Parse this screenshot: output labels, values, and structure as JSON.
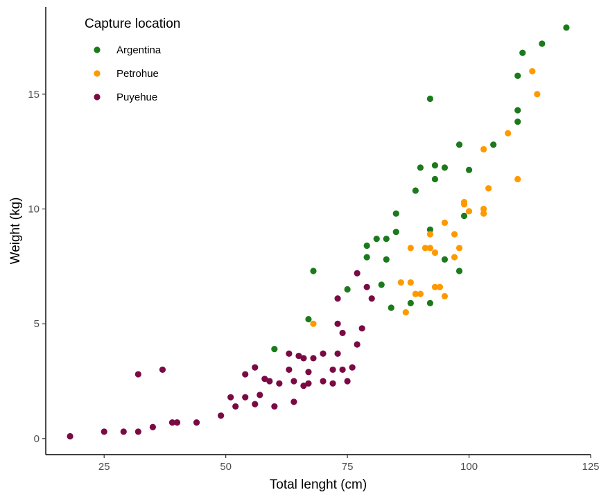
{
  "chart_data": {
    "type": "scatter",
    "title": "",
    "xlabel": "Total lenght (cm)",
    "ylabel": "Weight (kg)",
    "xlim": [
      13,
      125
    ],
    "ylim": [
      -0.7,
      18.8
    ],
    "x_ticks": [
      25,
      50,
      75,
      100,
      125
    ],
    "y_ticks": [
      0,
      5,
      10,
      15
    ],
    "grid": false,
    "legend": {
      "title": "Capture location",
      "placement": "top-left"
    },
    "series": [
      {
        "name": "Argentina",
        "color": "#1b7a1b",
        "points": [
          [
            60,
            3.9
          ],
          [
            67,
            5.2
          ],
          [
            68,
            7.3
          ],
          [
            75,
            6.5
          ],
          [
            79,
            7.9
          ],
          [
            79,
            8.4
          ],
          [
            81,
            8.7
          ],
          [
            82,
            6.7
          ],
          [
            83,
            7.8
          ],
          [
            83,
            8.7
          ],
          [
            84,
            5.7
          ],
          [
            85,
            9.0
          ],
          [
            85,
            9.8
          ],
          [
            88,
            5.9
          ],
          [
            89,
            10.8
          ],
          [
            90,
            11.8
          ],
          [
            92,
            5.9
          ],
          [
            92,
            9.1
          ],
          [
            92,
            14.8
          ],
          [
            93,
            11.3
          ],
          [
            93,
            11.9
          ],
          [
            95,
            7.8
          ],
          [
            95,
            11.8
          ],
          [
            98,
            7.3
          ],
          [
            98,
            12.8
          ],
          [
            99,
            9.7
          ],
          [
            100,
            11.7
          ],
          [
            105,
            12.8
          ],
          [
            110,
            13.8
          ],
          [
            110,
            14.3
          ],
          [
            110,
            15.8
          ],
          [
            111,
            16.8
          ],
          [
            115,
            17.2
          ],
          [
            120,
            17.9
          ]
        ]
      },
      {
        "name": "Petrohue",
        "color": "#ff9900",
        "points": [
          [
            68,
            5.0
          ],
          [
            86,
            6.8
          ],
          [
            87,
            5.5
          ],
          [
            88,
            6.8
          ],
          [
            88,
            8.3
          ],
          [
            89,
            6.3
          ],
          [
            90,
            6.3
          ],
          [
            91,
            8.3
          ],
          [
            92,
            8.3
          ],
          [
            92,
            8.9
          ],
          [
            93,
            6.6
          ],
          [
            93,
            8.1
          ],
          [
            94,
            6.6
          ],
          [
            95,
            6.2
          ],
          [
            95,
            9.4
          ],
          [
            97,
            8.9
          ],
          [
            97,
            7.9
          ],
          [
            98,
            8.3
          ],
          [
            99,
            10.3
          ],
          [
            99,
            10.2
          ],
          [
            100,
            9.9
          ],
          [
            103,
            10.0
          ],
          [
            103,
            9.8
          ],
          [
            103,
            12.6
          ],
          [
            104,
            10.9
          ],
          [
            108,
            13.3
          ],
          [
            110,
            11.3
          ],
          [
            113,
            16.0
          ],
          [
            114,
            15.0
          ]
        ]
      },
      {
        "name": "Puyehue",
        "color": "#7a0a44",
        "points": [
          [
            18,
            0.1
          ],
          [
            25,
            0.3
          ],
          [
            29,
            0.3
          ],
          [
            32,
            0.3
          ],
          [
            32,
            2.8
          ],
          [
            35,
            0.5
          ],
          [
            37,
            3.0
          ],
          [
            39,
            0.7
          ],
          [
            40,
            0.7
          ],
          [
            44,
            0.7
          ],
          [
            49,
            1.0
          ],
          [
            51,
            1.8
          ],
          [
            52,
            1.4
          ],
          [
            54,
            1.8
          ],
          [
            54,
            2.8
          ],
          [
            56,
            1.5
          ],
          [
            56,
            3.1
          ],
          [
            57,
            1.9
          ],
          [
            58,
            2.6
          ],
          [
            59,
            2.5
          ],
          [
            60,
            1.4
          ],
          [
            61,
            2.4
          ],
          [
            63,
            3.0
          ],
          [
            63,
            3.7
          ],
          [
            64,
            1.6
          ],
          [
            64,
            2.5
          ],
          [
            65,
            3.6
          ],
          [
            66,
            2.3
          ],
          [
            66,
            3.5
          ],
          [
            67,
            2.4
          ],
          [
            67,
            2.9
          ],
          [
            68,
            3.5
          ],
          [
            70,
            2.5
          ],
          [
            70,
            3.7
          ],
          [
            72,
            3.0
          ],
          [
            72,
            2.4
          ],
          [
            73,
            5.0
          ],
          [
            73,
            6.1
          ],
          [
            73,
            3.7
          ],
          [
            74,
            3.0
          ],
          [
            74,
            4.6
          ],
          [
            75,
            2.5
          ],
          [
            76,
            3.1
          ],
          [
            77,
            4.1
          ],
          [
            77,
            7.2
          ],
          [
            78,
            4.8
          ],
          [
            79,
            6.6
          ],
          [
            80,
            6.1
          ]
        ]
      }
    ]
  }
}
